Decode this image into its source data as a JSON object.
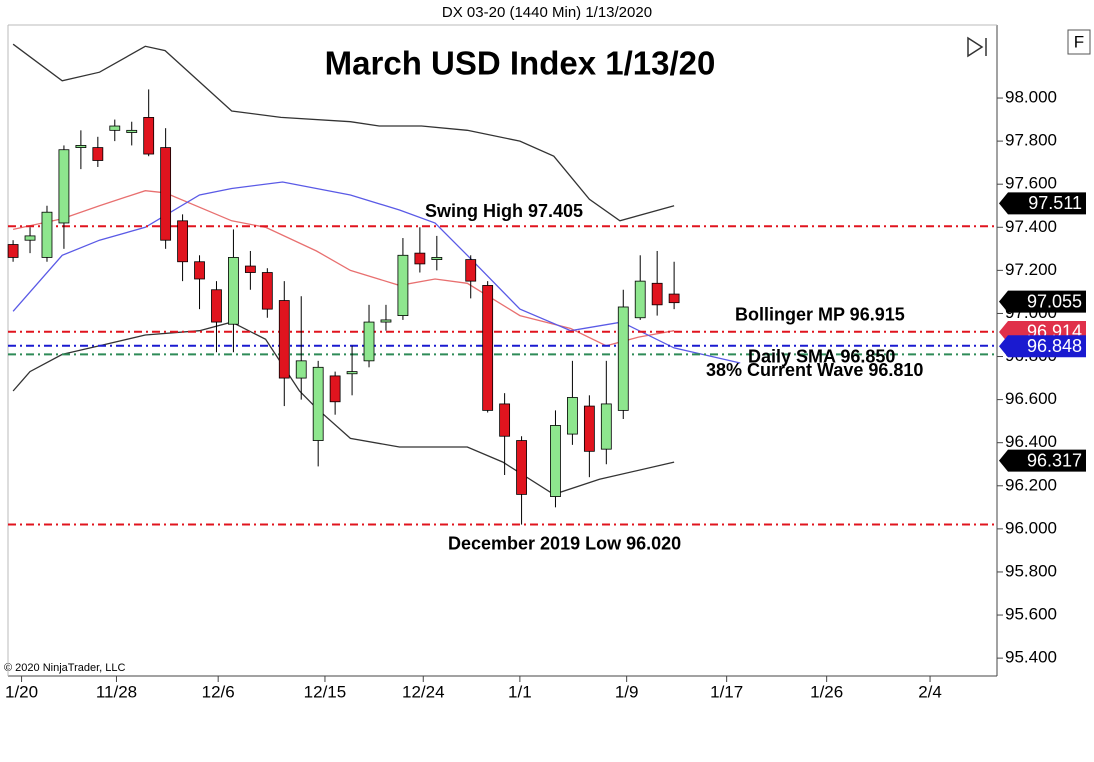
{
  "chart_data": {
    "type": "candlestick",
    "header": "DX 03-20 (1440 Min)  1/13/2020",
    "title": "March USD Index 1/13/20",
    "copyright": "© 2020 NinjaTrader, LLC",
    "xlim": [
      -0.3,
      58.05
    ],
    "xticks": [
      {
        "value": 0.5,
        "label": "1/20"
      },
      {
        "value": 6.1,
        "label": "11/28"
      },
      {
        "value": 12.1,
        "label": "12/6"
      },
      {
        "value": 18.4,
        "label": "12/15"
      },
      {
        "value": 24.2,
        "label": "12/24"
      },
      {
        "value": 29.9,
        "label": "1/1"
      },
      {
        "value": 36.2,
        "label": "1/9"
      },
      {
        "value": 42.1,
        "label": "1/17"
      },
      {
        "value": 48,
        "label": "1/26"
      },
      {
        "value": 54.1,
        "label": "2/4"
      }
    ],
    "ylim": [
      95.317,
      98.339
    ],
    "yticks": [
      {
        "value": 95.4,
        "label": "95.400"
      },
      {
        "value": 95.6,
        "label": "95.600"
      },
      {
        "value": 95.8,
        "label": "95.800"
      },
      {
        "value": 96.0,
        "label": "96.000"
      },
      {
        "value": 96.2,
        "label": "96.200"
      },
      {
        "value": 96.4,
        "label": "96.400"
      },
      {
        "value": 96.6,
        "label": "96.600"
      },
      {
        "value": 96.8,
        "label": "96.800"
      },
      {
        "value": 97.0,
        "label": "97.000"
      },
      {
        "value": 97.2,
        "label": "97.200"
      },
      {
        "value": 97.4,
        "label": "97.400"
      },
      {
        "value": 97.6,
        "label": "97.600"
      },
      {
        "value": 97.8,
        "label": "97.800"
      },
      {
        "value": 98.0,
        "label": "98.000"
      }
    ],
    "up_color": "#8ee68e",
    "down_color": "#e0141e",
    "x": [
      0,
      1,
      2,
      3,
      4,
      5,
      6,
      7,
      8,
      9,
      10,
      11,
      12,
      13,
      14,
      15,
      16,
      17,
      18,
      19,
      20,
      21,
      22,
      23,
      24,
      25,
      27,
      28,
      29,
      30,
      32,
      33,
      34,
      35,
      36,
      37,
      38,
      39
    ],
    "open": [
      97.32,
      97.34,
      97.26,
      97.42,
      97.77,
      97.77,
      97.85,
      97.84,
      97.91,
      97.77,
      97.43,
      97.24,
      97.11,
      96.95,
      97.22,
      97.19,
      97.06,
      96.7,
      96.41,
      96.71,
      96.72,
      96.78,
      96.96,
      96.99,
      97.28,
      97.25,
      97.25,
      97.13,
      96.58,
      96.41,
      96.15,
      96.44,
      96.57,
      96.37,
      96.55,
      96.98,
      97.14,
      97.09
    ],
    "high": [
      97.34,
      97.4,
      97.5,
      97.78,
      97.85,
      97.82,
      97.9,
      97.89,
      98.04,
      97.86,
      97.46,
      97.27,
      97.15,
      97.39,
      97.29,
      97.21,
      97.15,
      97.08,
      96.78,
      96.73,
      96.85,
      97.04,
      97.04,
      97.35,
      97.4,
      97.36,
      97.27,
      97.15,
      96.63,
      96.43,
      96.55,
      96.78,
      96.62,
      96.78,
      97.11,
      97.27,
      97.29,
      97.24
    ],
    "low": [
      97.24,
      97.28,
      97.24,
      97.3,
      97.67,
      97.68,
      97.8,
      97.78,
      97.73,
      97.3,
      97.15,
      97.02,
      96.82,
      96.82,
      97.11,
      96.98,
      96.57,
      96.6,
      96.29,
      96.53,
      96.62,
      96.75,
      96.92,
      96.97,
      97.19,
      97.2,
      97.07,
      96.54,
      96.25,
      96.02,
      96.1,
      96.39,
      96.24,
      96.3,
      96.51,
      96.97,
      96.99,
      97.02
    ],
    "close": [
      97.26,
      97.36,
      97.47,
      97.76,
      97.78,
      97.71,
      97.87,
      97.85,
      97.74,
      97.34,
      97.24,
      97.16,
      96.96,
      97.26,
      97.19,
      97.02,
      96.7,
      96.78,
      96.75,
      96.59,
      96.73,
      96.96,
      96.97,
      97.27,
      97.23,
      97.26,
      97.15,
      96.55,
      96.43,
      96.16,
      96.48,
      96.61,
      96.36,
      96.58,
      97.03,
      97.15,
      97.04,
      97.05
    ],
    "lines": [
      {
        "color": "#333333",
        "x": [
          0,
          2.9,
          5.1,
          7.8,
          8.97,
          12.9,
          15.8,
          19.9,
          21.6,
          24.1,
          26.8,
          29.9,
          31.9,
          34.0,
          35.8,
          39
        ],
        "values": [
          98.25,
          98.08,
          98.12,
          98.24,
          98.22,
          97.94,
          97.91,
          97.89,
          97.87,
          97.87,
          97.85,
          97.8,
          97.73,
          97.53,
          97.43,
          97.5
        ]
      },
      {
        "color": "#e87070",
        "x": [
          0,
          2.9,
          5.1,
          7.8,
          8.97,
          12.9,
          14.9,
          17.9,
          19.9,
          22.8,
          24.9,
          26.8,
          29.9,
          32.9,
          35,
          36.9,
          39
        ],
        "values": [
          97.39,
          97.44,
          97.5,
          97.57,
          97.56,
          97.43,
          97.4,
          97.29,
          97.2,
          97.13,
          97.16,
          97.14,
          96.99,
          96.93,
          96.85,
          96.89,
          96.92
        ]
      },
      {
        "color": "#5a5ae6",
        "x": [
          0,
          2.9,
          5.1,
          7.8,
          11,
          12.9,
          15.9,
          19.9,
          22.8,
          24.9,
          26.8,
          29.9,
          32.9,
          35.9,
          39,
          42.9
        ],
        "values": [
          97.01,
          97.27,
          97.34,
          97.4,
          97.55,
          97.58,
          97.61,
          97.55,
          97.48,
          97.42,
          97.27,
          97.02,
          96.92,
          96.96,
          96.84,
          96.77
        ]
      },
      {
        "color": "#333333",
        "x": [
          0,
          1,
          2.9,
          5.1,
          7.8,
          11,
          12.9,
          14.9,
          16.9,
          17.9,
          19.9,
          22.8,
          26.8,
          28.9,
          31.9,
          34.6,
          39
        ],
        "values": [
          96.64,
          96.73,
          96.81,
          96.85,
          96.9,
          96.92,
          96.96,
          96.88,
          96.64,
          96.56,
          96.42,
          96.38,
          96.38,
          96.31,
          96.16,
          96.23,
          96.31
        ]
      }
    ],
    "levels": [
      {
        "value": 97.405,
        "color": "#e0141e",
        "label": "Swing High 97.405"
      },
      {
        "value": 96.915,
        "color": "#e0141e",
        "label": "Bollinger MP 96.915"
      },
      {
        "value": 96.85,
        "color": "#1a1ad0",
        "label": "Daily SMA 96.850"
      },
      {
        "value": 96.81,
        "color": "#2e8b57",
        "label": "38% Current Wave 96.810"
      },
      {
        "value": 96.02,
        "color": "#e0141e",
        "label": "December 2019 Low 96.020"
      }
    ],
    "price_markers": [
      {
        "value": 97.511,
        "color": "#000000"
      },
      {
        "value": 97.055,
        "color": "#000000"
      },
      {
        "value": 96.914,
        "color": "#e0304a"
      },
      {
        "value": 96.848,
        "color": "#1a1ad0"
      },
      {
        "value": 96.317,
        "color": "#000000"
      }
    ]
  }
}
